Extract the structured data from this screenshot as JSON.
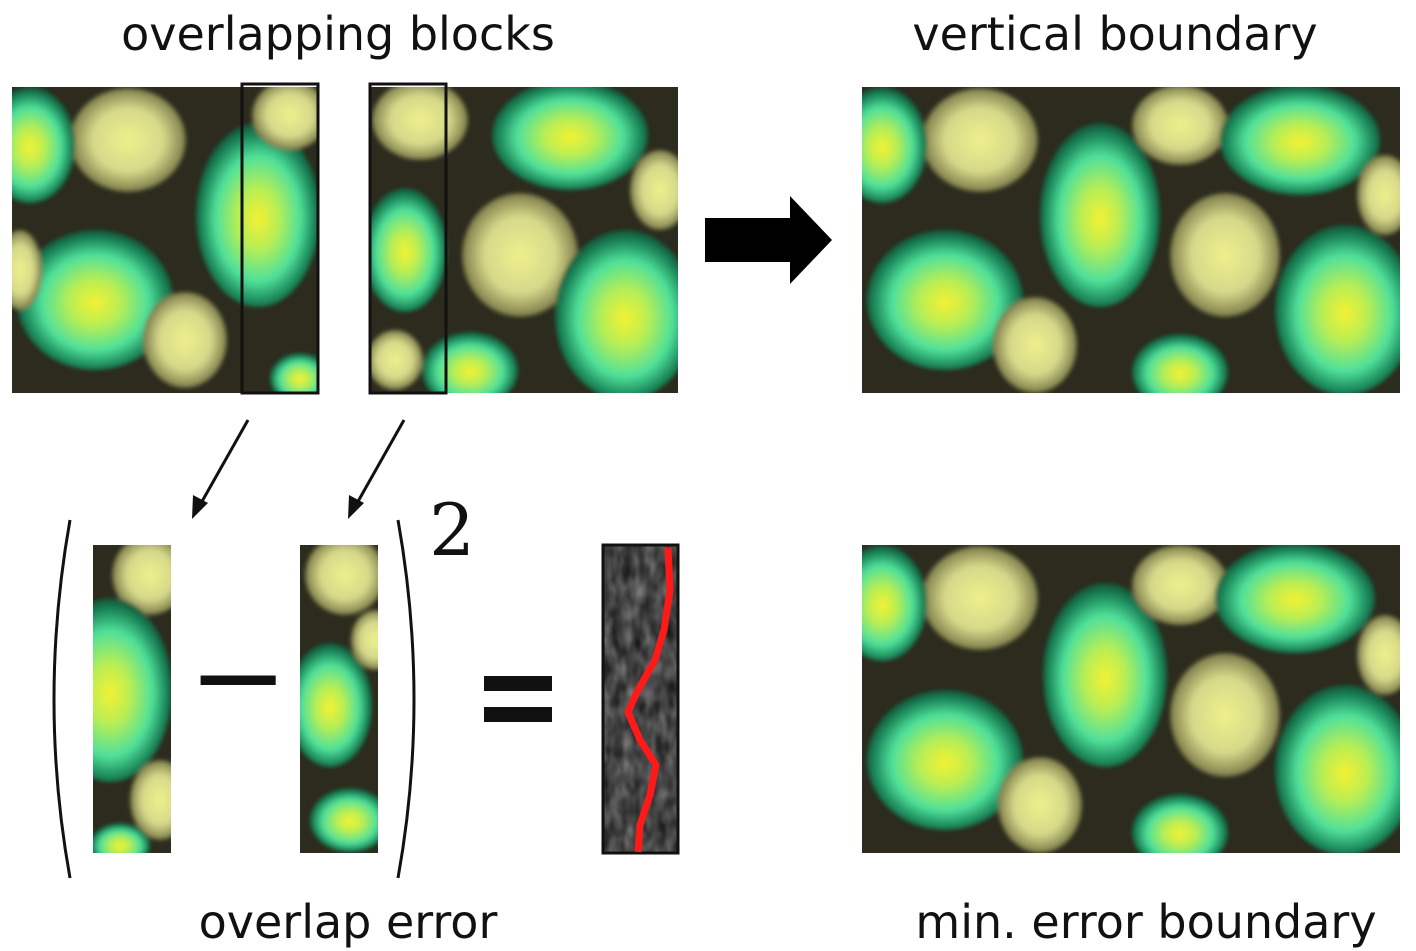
{
  "labels": {
    "overlapping_blocks": "overlapping blocks",
    "vertical_boundary": "vertical boundary",
    "overlap_error": "overlap error",
    "min_error_boundary": "min. error boundary"
  },
  "equation": {
    "minus": "−",
    "exponent": "2",
    "equals": "="
  },
  "colors": {
    "background": "#ffffff",
    "texture_dark": "#2a2a1c",
    "texture_cell_green": "#4ee39a",
    "texture_cell_yellow": "#f2f23a",
    "texture_cell_pale": "#d9dd88",
    "cut_line": "#ff1a1a",
    "outline": "#111111"
  }
}
